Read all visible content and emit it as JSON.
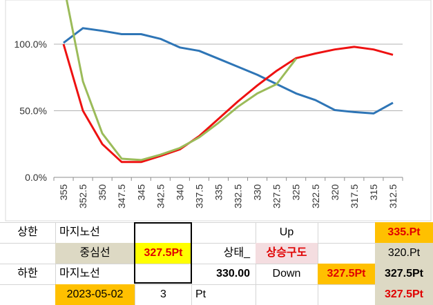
{
  "chart_data": {
    "type": "line",
    "categories": [
      "355",
      "352.5",
      "350",
      "347.5",
      "345",
      "342.5",
      "340",
      "337.5",
      "335",
      "332.5",
      "330",
      "327.5",
      "325",
      "322.5",
      "320",
      "317.5",
      "315",
      "312.5"
    ],
    "y_ticks": [
      "0.0%",
      "50.0%",
      "100.0%"
    ],
    "ylim": [
      0,
      135
    ],
    "grid": true,
    "series": [
      {
        "color": "#2e75b6",
        "values": [
          101,
          112,
          110,
          107.5,
          107.5,
          104,
          97.5,
          95,
          89,
          83,
          77,
          70,
          63,
          58,
          50.5,
          49,
          48,
          56
        ]
      },
      {
        "color": "#ee1111",
        "values": [
          100,
          50,
          25,
          11.5,
          11.5,
          16,
          21,
          31,
          44,
          57,
          69,
          80,
          89.5,
          93,
          96,
          98,
          96,
          92
        ]
      },
      {
        "color": "#9bbb59",
        "values": [
          145,
          72,
          33,
          14,
          13,
          17,
          22,
          30,
          41,
          53,
          63,
          70,
          89,
          null,
          null,
          null,
          null,
          null
        ]
      }
    ]
  },
  "sheet": {
    "upper_label": "상한",
    "upper_line": "마지노선",
    "center_line": "중심선",
    "center_value": "327.5Pt",
    "status_label": "상태_",
    "status_value": "상승구도",
    "up_label": "Up",
    "down_label": "Down",
    "lower_label": "하한",
    "lower_line": "마지노선",
    "current_value": "330.00",
    "down_value": "327.5Pt",
    "right_top": "335.Pt",
    "right_2": "320.Pt",
    "right_3": "327.5Pt",
    "right_4": "327.5Pt",
    "date": "2023-05-02",
    "step": "3",
    "step_unit": "Pt"
  }
}
